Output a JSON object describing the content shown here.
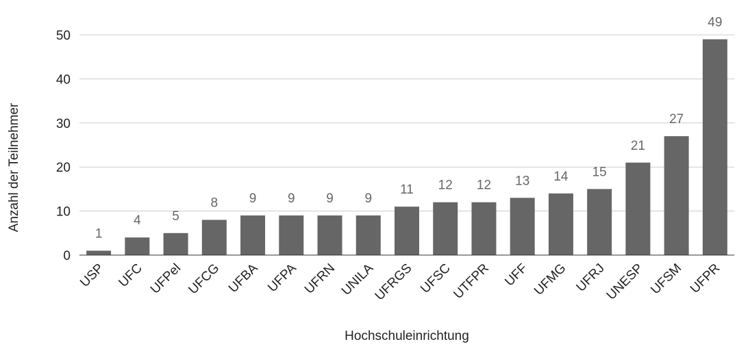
{
  "chart_data": {
    "type": "bar",
    "categories": [
      "USP",
      "UFC",
      "UFPel",
      "UFCG",
      "UFBA",
      "UFPA",
      "UFRN",
      "UNILA",
      "UFRGS",
      "UFSC",
      "UTFPR",
      "UFF",
      "UFMG",
      "UFRJ",
      "UNESP",
      "UFSM",
      "UFPR"
    ],
    "values": [
      1,
      4,
      5,
      8,
      9,
      9,
      9,
      9,
      11,
      12,
      12,
      13,
      14,
      15,
      21,
      27,
      49
    ],
    "xlabel": "Hochschuleinrichtung",
    "ylabel": "Anzahl der Teilnehmer",
    "ylim": [
      0,
      50
    ],
    "yticks": [
      0,
      10,
      20,
      30,
      40,
      50
    ],
    "grid": true,
    "bar_color": "#666666",
    "data_labels": true
  }
}
